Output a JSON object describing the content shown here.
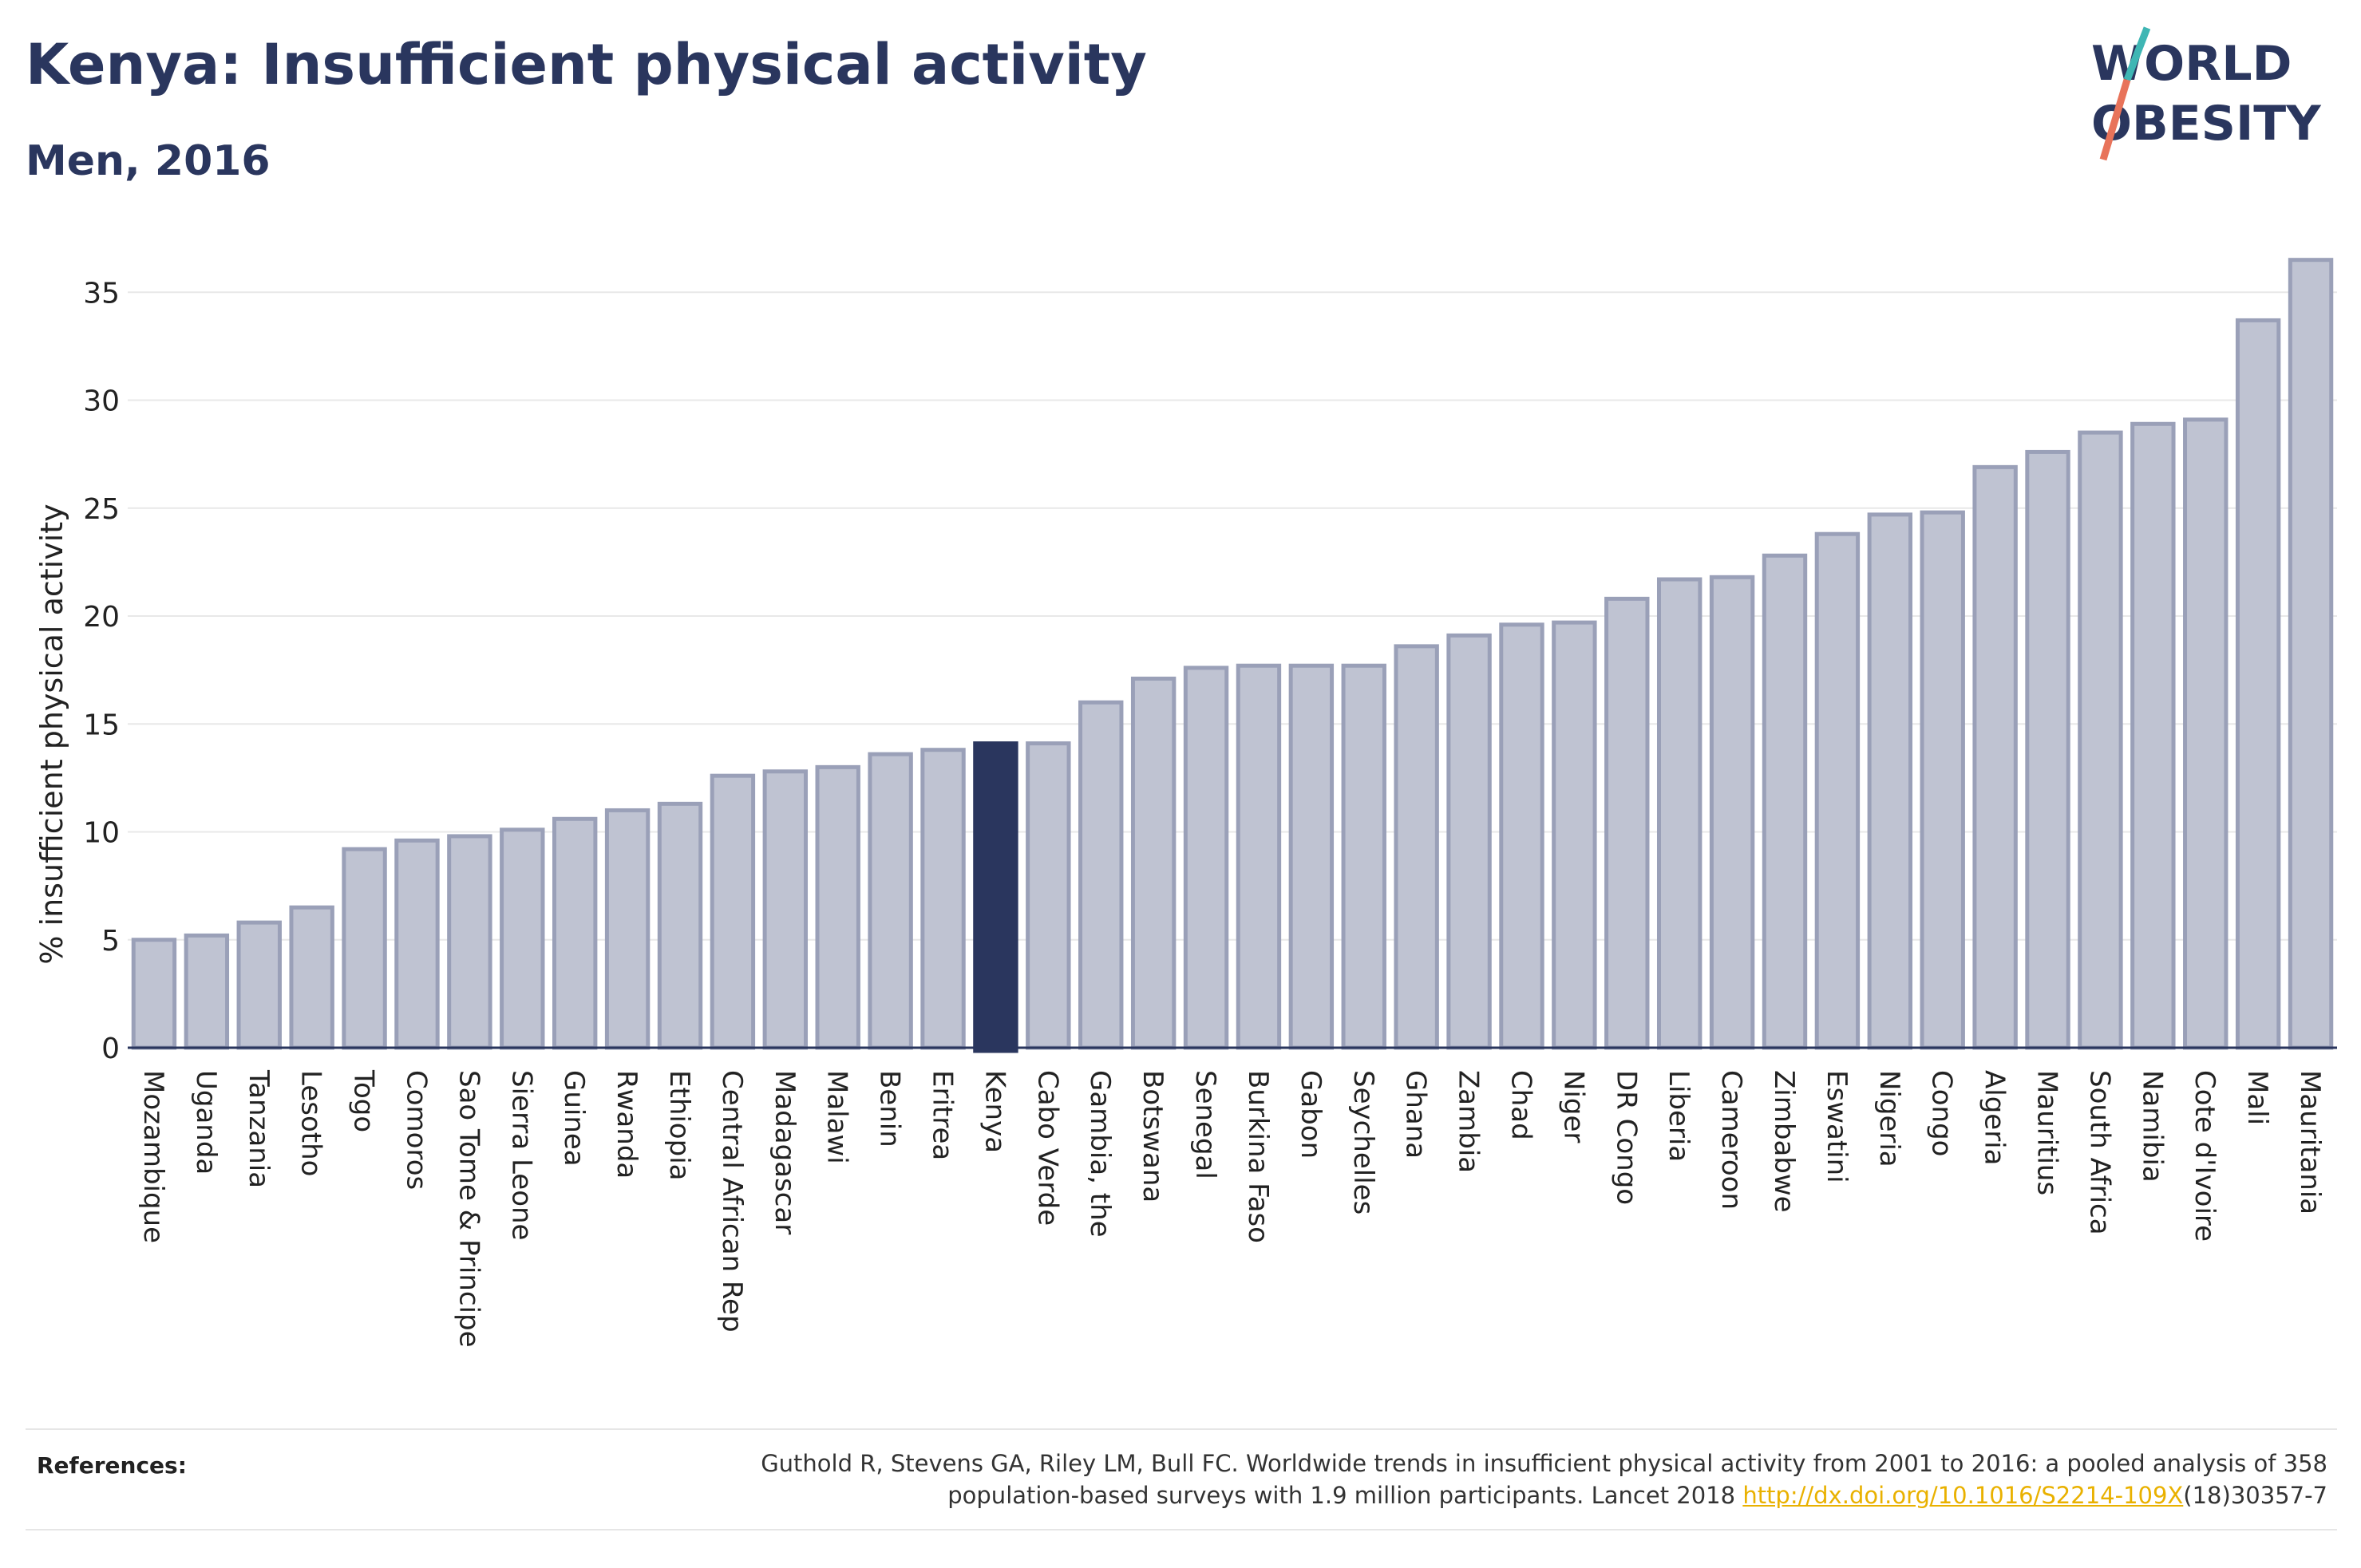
{
  "header": {
    "title": "Kenya: Insufficient physical activity",
    "subtitle": "Men, 2016"
  },
  "logo": {
    "line1": "WORLD",
    "line2": "OBESITY",
    "colors": {
      "text": "#2a365e",
      "slash_teal": "#3fb6b4",
      "slash_red": "#e8735a"
    }
  },
  "colors": {
    "bar": "#bfc3d2",
    "bar_stroke": "#9aa0b8",
    "highlight": "#2a365e",
    "grid": "#e8e8e8",
    "axis": "#2a365e"
  },
  "chart_data": {
    "type": "bar",
    "title": "Kenya: Insufficient physical activity",
    "subtitle": "Men, 2016",
    "xlabel": "",
    "ylabel": "% insufficient physical activity",
    "ylim": [
      0,
      37
    ],
    "yticks": [
      0,
      5,
      10,
      15,
      20,
      25,
      30,
      35
    ],
    "grid": true,
    "highlight": "Kenya",
    "categories": [
      "Mozambique",
      "Uganda",
      "Tanzania",
      "Lesotho",
      "Togo",
      "Comoros",
      "Sao Tome & Principe",
      "Sierra Leone",
      "Guinea",
      "Rwanda",
      "Ethiopia",
      "Central African Rep",
      "Madagascar",
      "Malawi",
      "Benin",
      "Eritrea",
      "Kenya",
      "Cabo Verde",
      "Gambia, the",
      "Botswana",
      "Senegal",
      "Burkina Faso",
      "Gabon",
      "Seychelles",
      "Ghana",
      "Zambia",
      "Chad",
      "Niger",
      "DR Congo",
      "Liberia",
      "Cameroon",
      "Zimbabwe",
      "Eswatini",
      "Nigeria",
      "Congo",
      "Algeria",
      "Mauritius",
      "South Africa",
      "Namibia",
      "Cote d'Ivoire",
      "Mali",
      "Mauritania"
    ],
    "values": [
      5.0,
      5.2,
      5.8,
      6.5,
      9.2,
      9.6,
      9.8,
      10.1,
      10.6,
      11.0,
      11.3,
      12.6,
      12.8,
      13.0,
      13.6,
      13.8,
      14.1,
      14.1,
      16.0,
      17.1,
      17.6,
      17.7,
      17.7,
      17.7,
      18.6,
      19.1,
      19.6,
      19.7,
      20.8,
      21.7,
      21.8,
      22.8,
      23.8,
      24.7,
      24.8,
      26.9,
      27.6,
      28.5,
      28.9,
      29.1,
      33.7,
      36.5
    ]
  },
  "references": {
    "label": "References:",
    "text_line1": "Guthold R, Stevens GA, Riley LM, Bull FC. Worldwide trends in insufficient physical activity from 2001 to 2016: a pooled analysis of 358",
    "text_line2_prefix": "population-based surveys with 1.9 million participants. Lancet 2018 ",
    "link": "http://dx.doi.org/10.1016/S2214-109X",
    "suffix": "(18)30357-7"
  }
}
